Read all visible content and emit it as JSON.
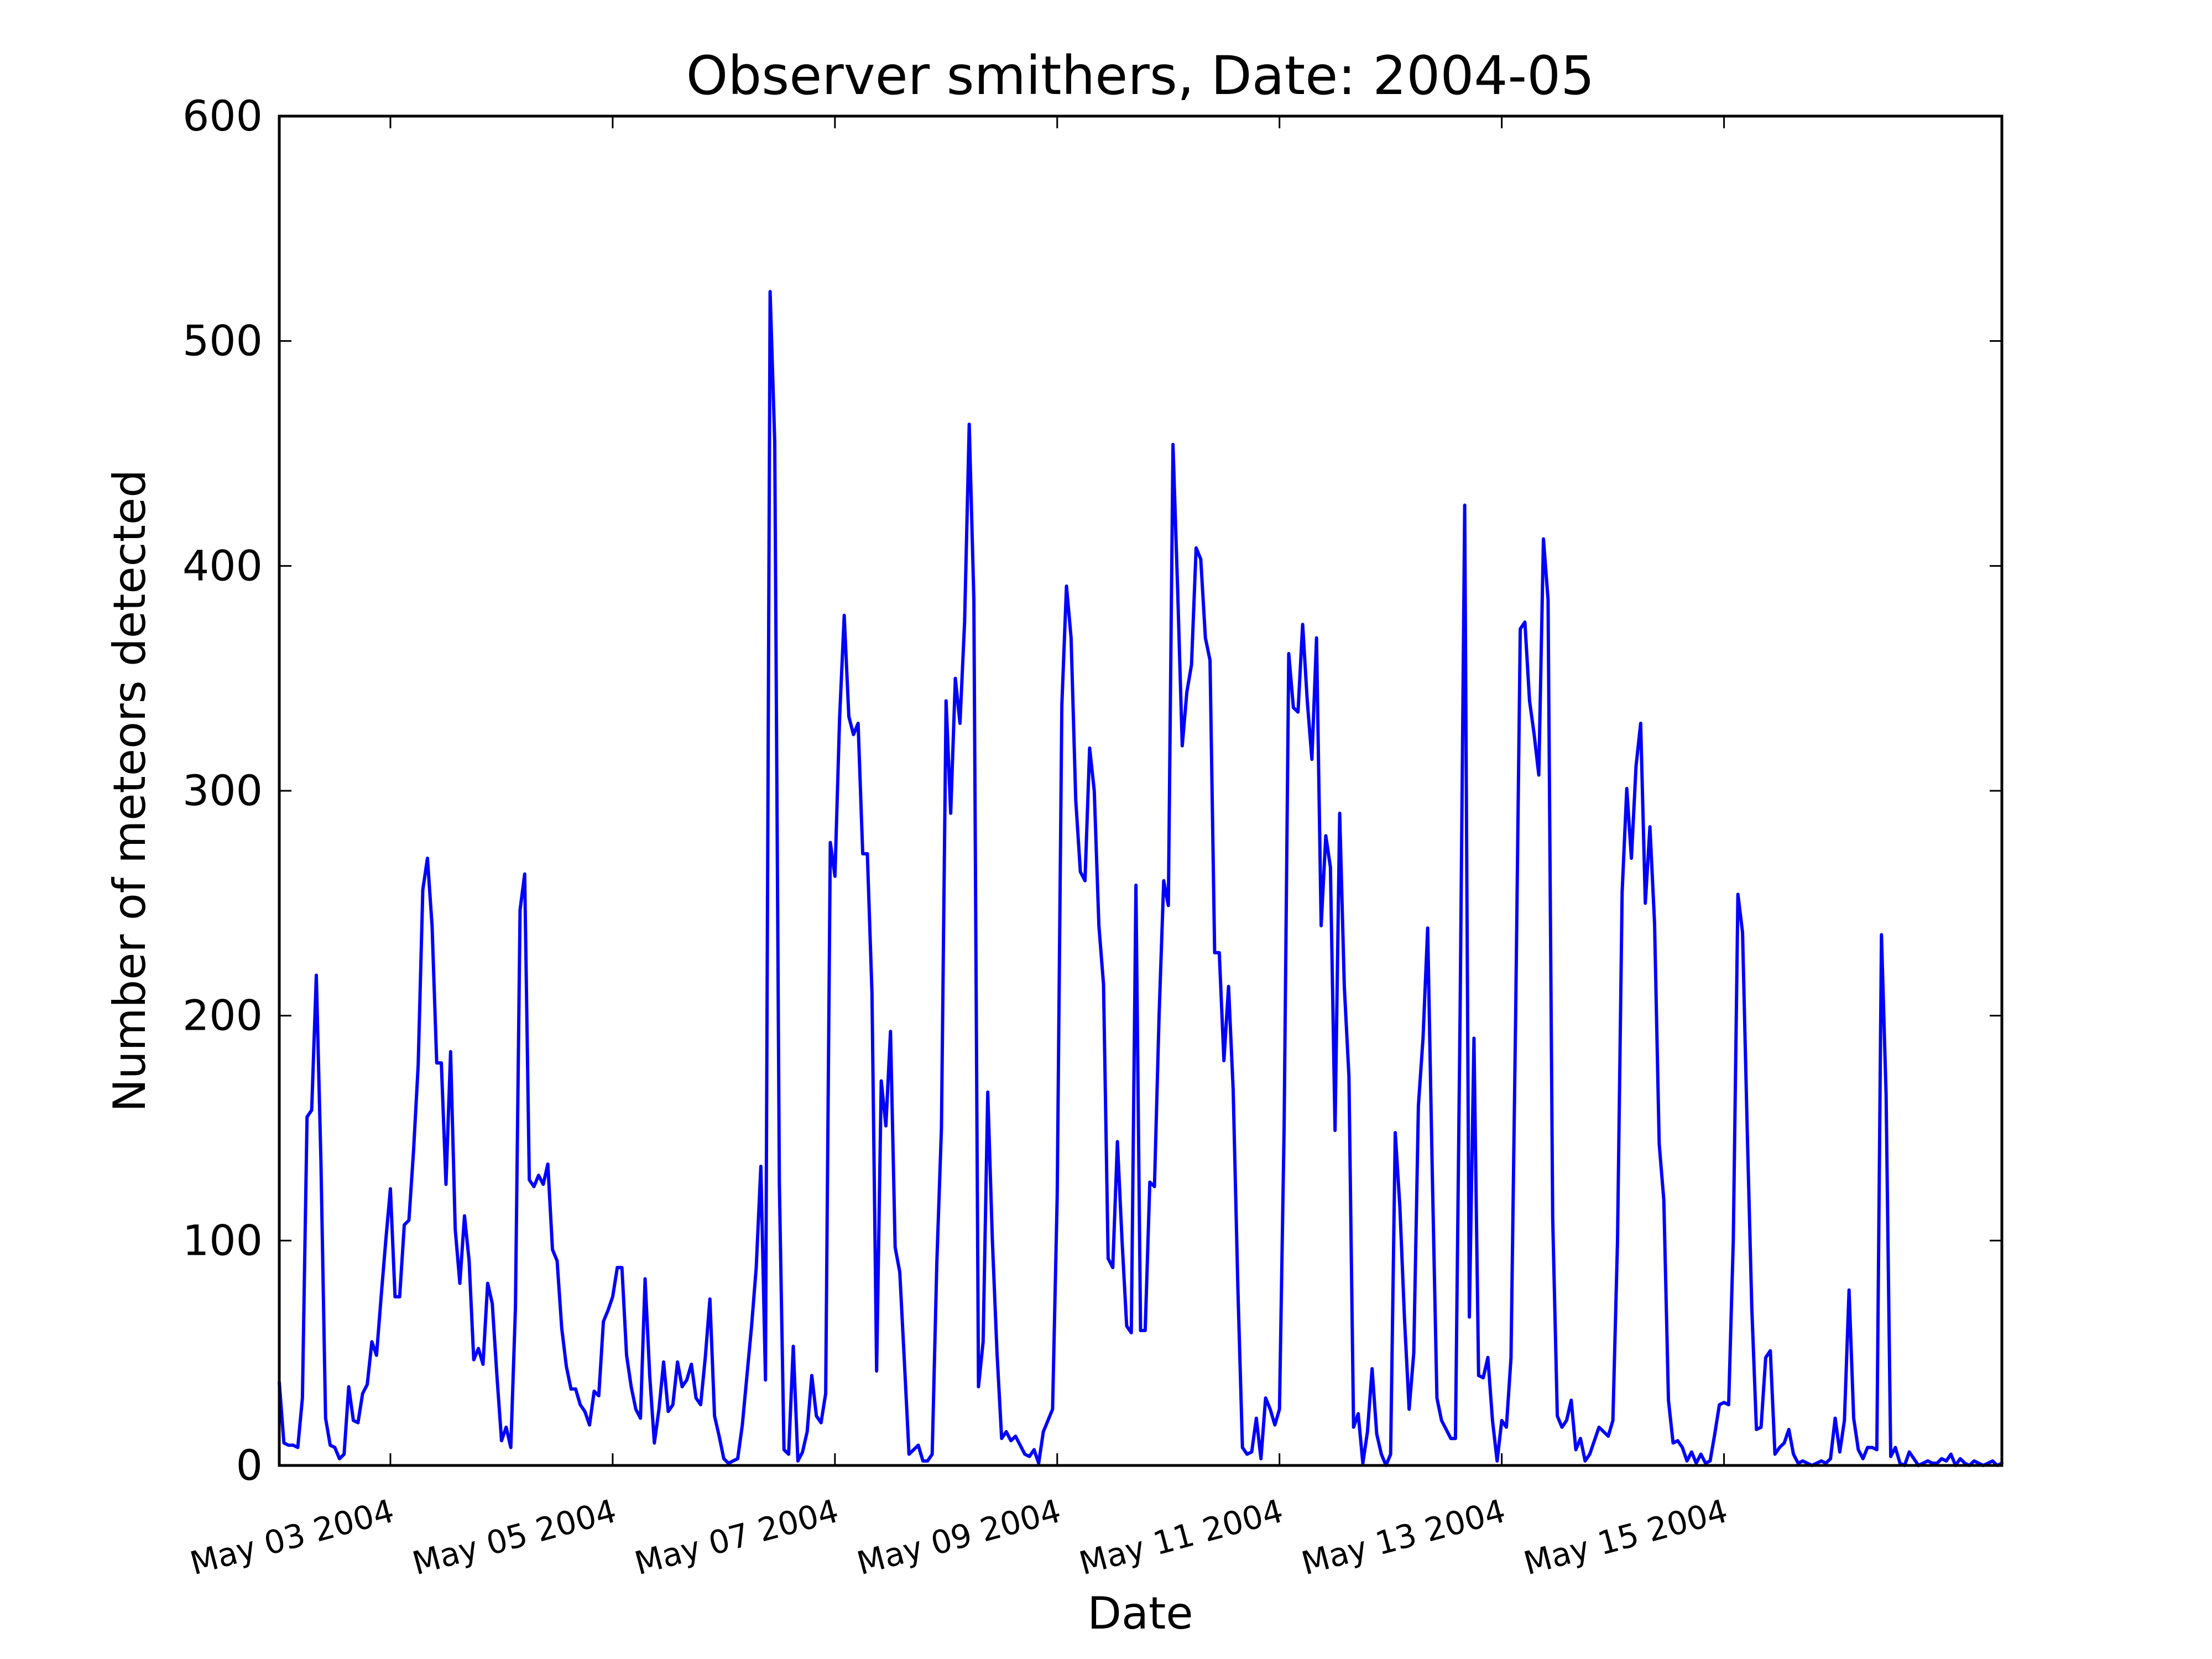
{
  "chart_data": {
    "type": "line",
    "title": "Observer smithers, Date: 2004-05",
    "xlabel": "Date",
    "ylabel": "Number of meteors detected",
    "xlim": [
      "2004-05-02T00:00",
      "2004-05-17T12:00"
    ],
    "ylim": [
      0,
      600
    ],
    "yticks": [
      0,
      100,
      200,
      300,
      400,
      500,
      600
    ],
    "xticks": [
      {
        "x": "2004-05-03T00:00",
        "label": "May 03 2004"
      },
      {
        "x": "2004-05-05T00:00",
        "label": "May 05 2004"
      },
      {
        "x": "2004-05-07T00:00",
        "label": "May 07 2004"
      },
      {
        "x": "2004-05-09T00:00",
        "label": "May 09 2004"
      },
      {
        "x": "2004-05-11T00:00",
        "label": "May 11 2004"
      },
      {
        "x": "2004-05-13T00:00",
        "label": "May 13 2004"
      },
      {
        "x": "2004-05-15T00:00",
        "label": "May 15 2004"
      }
    ],
    "grid": false,
    "line_color": "#0000ff",
    "series": [
      {
        "x": [
          "2004-05-02T00:00",
          "2004-05-02T01:00",
          "2004-05-02T02:00",
          "2004-05-02T03:00",
          "2004-05-02T04:00",
          "2004-05-02T05:00",
          "2004-05-02T06:00",
          "2004-05-02T07:00",
          "2004-05-02T08:00",
          "2004-05-02T09:00",
          "2004-05-02T10:00",
          "2004-05-02T11:00",
          "2004-05-02T12:00",
          "2004-05-02T13:00",
          "2004-05-02T14:00",
          "2004-05-02T15:00",
          "2004-05-02T16:00",
          "2004-05-02T17:00",
          "2004-05-02T18:00",
          "2004-05-02T19:00",
          "2004-05-02T20:00",
          "2004-05-02T21:00",
          "2004-05-02T22:00",
          "2004-05-02T23:00",
          "2004-05-03T00:00",
          "2004-05-03T01:00",
          "2004-05-03T02:00",
          "2004-05-03T03:00",
          "2004-05-03T04:00",
          "2004-05-03T05:00",
          "2004-05-03T06:00",
          "2004-05-03T07:00",
          "2004-05-03T08:00",
          "2004-05-03T09:00",
          "2004-05-03T10:00",
          "2004-05-03T11:00",
          "2004-05-03T12:00",
          "2004-05-03T13:00",
          "2004-05-03T14:00",
          "2004-05-03T15:00",
          "2004-05-03T16:00",
          "2004-05-03T17:00",
          "2004-05-03T18:00",
          "2004-05-03T19:00",
          "2004-05-03T20:00",
          "2004-05-03T21:00",
          "2004-05-03T22:00",
          "2004-05-03T23:00",
          "2004-05-04T00:00",
          "2004-05-04T01:00",
          "2004-05-04T02:00",
          "2004-05-04T03:00",
          "2004-05-04T04:00",
          "2004-05-04T05:00",
          "2004-05-04T06:00",
          "2004-05-04T07:00",
          "2004-05-04T08:00",
          "2004-05-04T09:00",
          "2004-05-04T10:00",
          "2004-05-04T11:00",
          "2004-05-04T12:00",
          "2004-05-04T13:00",
          "2004-05-04T14:00",
          "2004-05-04T15:00",
          "2004-05-04T16:00",
          "2004-05-04T17:00",
          "2004-05-04T18:00",
          "2004-05-04T19:00",
          "2004-05-04T20:00",
          "2004-05-04T21:00",
          "2004-05-04T22:00",
          "2004-05-04T23:00",
          "2004-05-05T00:00",
          "2004-05-05T01:00",
          "2004-05-05T02:00",
          "2004-05-05T03:00",
          "2004-05-05T04:00",
          "2004-05-05T05:00",
          "2004-05-05T06:00",
          "2004-05-05T07:00",
          "2004-05-05T08:00",
          "2004-05-05T09:00",
          "2004-05-05T10:00",
          "2004-05-05T11:00",
          "2004-05-05T12:00",
          "2004-05-05T13:00",
          "2004-05-05T14:00",
          "2004-05-05T15:00",
          "2004-05-05T16:00",
          "2004-05-05T17:00",
          "2004-05-05T18:00",
          "2004-05-05T19:00",
          "2004-05-05T20:00",
          "2004-05-05T21:00",
          "2004-05-05T22:00",
          "2004-05-05T23:00",
          "2004-05-06T00:00",
          "2004-05-06T01:00",
          "2004-05-06T02:00",
          "2004-05-06T03:00",
          "2004-05-06T04:00",
          "2004-05-06T05:00",
          "2004-05-06T06:00",
          "2004-05-06T07:00",
          "2004-05-06T08:00",
          "2004-05-06T09:00",
          "2004-05-06T10:00",
          "2004-05-06T11:00",
          "2004-05-06T12:00",
          "2004-05-06T13:00",
          "2004-05-06T14:00",
          "2004-05-06T15:00",
          "2004-05-06T16:00",
          "2004-05-06T17:00",
          "2004-05-06T18:00",
          "2004-05-06T19:00",
          "2004-05-06T20:00",
          "2004-05-06T21:00",
          "2004-05-06T22:00",
          "2004-05-06T23:00",
          "2004-05-07T00:00",
          "2004-05-07T01:00",
          "2004-05-07T02:00",
          "2004-05-07T03:00",
          "2004-05-07T04:00",
          "2004-05-07T05:00",
          "2004-05-07T06:00",
          "2004-05-07T07:00",
          "2004-05-07T08:00",
          "2004-05-07T09:00",
          "2004-05-07T10:00",
          "2004-05-07T11:00",
          "2004-05-07T12:00",
          "2004-05-07T13:00",
          "2004-05-07T14:00",
          "2004-05-07T15:00",
          "2004-05-07T16:00",
          "2004-05-07T17:00",
          "2004-05-07T18:00",
          "2004-05-07T19:00",
          "2004-05-07T20:00",
          "2004-05-07T21:00",
          "2004-05-07T22:00",
          "2004-05-07T23:00",
          "2004-05-08T00:00",
          "2004-05-08T01:00",
          "2004-05-08T02:00",
          "2004-05-08T03:00",
          "2004-05-08T04:00",
          "2004-05-08T05:00",
          "2004-05-08T06:00",
          "2004-05-08T07:00",
          "2004-05-08T08:00",
          "2004-05-08T09:00",
          "2004-05-08T10:00",
          "2004-05-08T11:00",
          "2004-05-08T12:00",
          "2004-05-08T13:00",
          "2004-05-08T14:00",
          "2004-05-08T15:00",
          "2004-05-08T16:00",
          "2004-05-08T17:00",
          "2004-05-08T18:00",
          "2004-05-08T19:00",
          "2004-05-08T20:00",
          "2004-05-08T21:00",
          "2004-05-08T22:00",
          "2004-05-08T23:00",
          "2004-05-09T00:00",
          "2004-05-09T01:00",
          "2004-05-09T02:00",
          "2004-05-09T03:00",
          "2004-05-09T04:00",
          "2004-05-09T05:00",
          "2004-05-09T06:00",
          "2004-05-09T07:00",
          "2004-05-09T08:00",
          "2004-05-09T09:00",
          "2004-05-09T10:00",
          "2004-05-09T11:00",
          "2004-05-09T12:00",
          "2004-05-09T13:00",
          "2004-05-09T14:00",
          "2004-05-09T15:00",
          "2004-05-09T16:00",
          "2004-05-09T17:00",
          "2004-05-09T18:00",
          "2004-05-09T19:00",
          "2004-05-09T20:00",
          "2004-05-09T21:00",
          "2004-05-09T22:00",
          "2004-05-09T23:00",
          "2004-05-10T00:00",
          "2004-05-10T01:00",
          "2004-05-10T02:00",
          "2004-05-10T03:00",
          "2004-05-10T04:00",
          "2004-05-10T05:00",
          "2004-05-10T06:00",
          "2004-05-10T07:00",
          "2004-05-10T08:00",
          "2004-05-10T09:00",
          "2004-05-10T10:00",
          "2004-05-10T11:00",
          "2004-05-10T12:00",
          "2004-05-10T13:00",
          "2004-05-10T14:00",
          "2004-05-10T15:00",
          "2004-05-10T16:00",
          "2004-05-10T17:00",
          "2004-05-10T18:00",
          "2004-05-10T19:00",
          "2004-05-10T20:00",
          "2004-05-10T21:00",
          "2004-05-10T22:00",
          "2004-05-10T23:00",
          "2004-05-11T00:00",
          "2004-05-11T01:00",
          "2004-05-11T02:00",
          "2004-05-11T03:00",
          "2004-05-11T04:00",
          "2004-05-11T05:00",
          "2004-05-11T06:00",
          "2004-05-11T07:00",
          "2004-05-11T08:00",
          "2004-05-11T09:00",
          "2004-05-11T10:00",
          "2004-05-11T11:00",
          "2004-05-11T12:00",
          "2004-05-11T13:00",
          "2004-05-11T14:00",
          "2004-05-11T15:00",
          "2004-05-11T16:00",
          "2004-05-11T17:00",
          "2004-05-11T18:00",
          "2004-05-11T19:00",
          "2004-05-11T20:00",
          "2004-05-11T21:00",
          "2004-05-11T22:00",
          "2004-05-11T23:00",
          "2004-05-12T00:00",
          "2004-05-12T01:00",
          "2004-05-12T02:00",
          "2004-05-12T03:00",
          "2004-05-12T04:00",
          "2004-05-12T05:00",
          "2004-05-12T06:00",
          "2004-05-12T07:00",
          "2004-05-12T08:00",
          "2004-05-12T09:00",
          "2004-05-12T10:00",
          "2004-05-12T11:00",
          "2004-05-12T12:00",
          "2004-05-12T13:00",
          "2004-05-12T14:00",
          "2004-05-12T15:00",
          "2004-05-12T16:00",
          "2004-05-12T17:00",
          "2004-05-12T18:00",
          "2004-05-12T19:00",
          "2004-05-12T20:00",
          "2004-05-12T21:00",
          "2004-05-12T22:00",
          "2004-05-12T23:00",
          "2004-05-13T00:00",
          "2004-05-13T01:00",
          "2004-05-13T02:00",
          "2004-05-13T03:00",
          "2004-05-13T04:00",
          "2004-05-13T05:00",
          "2004-05-13T06:00",
          "2004-05-13T07:00",
          "2004-05-13T08:00",
          "2004-05-13T09:00",
          "2004-05-13T10:00",
          "2004-05-13T11:00",
          "2004-05-13T12:00",
          "2004-05-13T13:00",
          "2004-05-13T14:00",
          "2004-05-13T15:00",
          "2004-05-13T16:00",
          "2004-05-13T17:00",
          "2004-05-13T18:00",
          "2004-05-13T19:00",
          "2004-05-13T20:00",
          "2004-05-13T21:00",
          "2004-05-13T22:00",
          "2004-05-13T23:00",
          "2004-05-14T00:00",
          "2004-05-14T01:00",
          "2004-05-14T02:00",
          "2004-05-14T03:00",
          "2004-05-14T04:00",
          "2004-05-14T05:00",
          "2004-05-14T06:00",
          "2004-05-14T07:00",
          "2004-05-14T08:00",
          "2004-05-14T09:00",
          "2004-05-14T10:00",
          "2004-05-14T11:00",
          "2004-05-14T12:00",
          "2004-05-14T13:00",
          "2004-05-14T14:00",
          "2004-05-14T15:00",
          "2004-05-14T16:00",
          "2004-05-14T17:00",
          "2004-05-14T18:00",
          "2004-05-14T19:00",
          "2004-05-14T20:00",
          "2004-05-14T21:00",
          "2004-05-14T22:00",
          "2004-05-14T23:00",
          "2004-05-15T00:00",
          "2004-05-15T01:00",
          "2004-05-15T02:00",
          "2004-05-15T03:00",
          "2004-05-15T04:00",
          "2004-05-15T05:00",
          "2004-05-15T06:00",
          "2004-05-15T07:00",
          "2004-05-15T08:00",
          "2004-05-15T09:00",
          "2004-05-15T10:00",
          "2004-05-15T11:00",
          "2004-05-15T12:00",
          "2004-05-15T13:00",
          "2004-05-15T14:00",
          "2004-05-15T15:00",
          "2004-05-15T16:00",
          "2004-05-15T17:00",
          "2004-05-15T18:00",
          "2004-05-15T19:00",
          "2004-05-15T20:00",
          "2004-05-15T21:00",
          "2004-05-15T22:00",
          "2004-05-15T23:00",
          "2004-05-16T00:00",
          "2004-05-16T01:00",
          "2004-05-16T02:00",
          "2004-05-16T03:00",
          "2004-05-16T04:00",
          "2004-05-16T05:00",
          "2004-05-16T06:00",
          "2004-05-16T07:00",
          "2004-05-16T08:00",
          "2004-05-16T09:00",
          "2004-05-16T10:00",
          "2004-05-16T11:00",
          "2004-05-16T12:00",
          "2004-05-16T13:00",
          "2004-05-16T14:00",
          "2004-05-16T15:00",
          "2004-05-16T16:00",
          "2004-05-16T17:00",
          "2004-05-16T18:00",
          "2004-05-16T19:00",
          "2004-05-16T20:00",
          "2004-05-16T21:00",
          "2004-05-16T22:00",
          "2004-05-16T23:00",
          "2004-05-17T00:00",
          "2004-05-17T01:00",
          "2004-05-17T02:00",
          "2004-05-17T03:00",
          "2004-05-17T04:00",
          "2004-05-17T05:00",
          "2004-05-17T06:00",
          "2004-05-17T07:00",
          "2004-05-17T08:00",
          "2004-05-17T09:00",
          "2004-05-17T10:00",
          "2004-05-17T11:00",
          "2004-05-17T12:00"
        ],
        "values": [
          37,
          10,
          9,
          9,
          8,
          30,
          155,
          158,
          218,
          135,
          21,
          9,
          8,
          3,
          5,
          35,
          20,
          19,
          32,
          36,
          55,
          49,
          75,
          100,
          123,
          75,
          75,
          107,
          109,
          140,
          178,
          256,
          270,
          240,
          179,
          179,
          125,
          184,
          105,
          81,
          111,
          91,
          47,
          52,
          45,
          81,
          72,
          40,
          11,
          17,
          8,
          70,
          247,
          263,
          127,
          124,
          129,
          125,
          134,
          96,
          91,
          61,
          44,
          34,
          34,
          27,
          24,
          18,
          33,
          31,
          64,
          69,
          75,
          88,
          88,
          49,
          35,
          25,
          21,
          83,
          40,
          10,
          25,
          46,
          24,
          27,
          46,
          35,
          38,
          45,
          30,
          27,
          48,
          74,
          22,
          13,
          3,
          1,
          2,
          3,
          18,
          40,
          62,
          88,
          133,
          38,
          522,
          455,
          125,
          7,
          5,
          53,
          2,
          6,
          15,
          40,
          22,
          19,
          32,
          277,
          262,
          332,
          378,
          333,
          325,
          330,
          272,
          272,
          210,
          42,
          171,
          151,
          193,
          97,
          86,
          46,
          5,
          7,
          9,
          2,
          2,
          5,
          90,
          150,
          340,
          290,
          350,
          330,
          375,
          463,
          385,
          35,
          55,
          166,
          100,
          50,
          12,
          15,
          11,
          13,
          9,
          5,
          4,
          7,
          1,
          15,
          20,
          25,
          120,
          338,
          391,
          368,
          296,
          264,
          260,
          319,
          300,
          240,
          214,
          92,
          88,
          144,
          100,
          62,
          59,
          258,
          60,
          60,
          126,
          124,
          200,
          260,
          249,
          454,
          390,
          320,
          344,
          356,
          408,
          403,
          368,
          358,
          228,
          228,
          180,
          213,
          167,
          80,
          8,
          5,
          6,
          21,
          3,
          30,
          25,
          18,
          25,
          150,
          361,
          337,
          335,
          374,
          340,
          314,
          368,
          240,
          280,
          266,
          149,
          290,
          213,
          173,
          17,
          23,
          1,
          15,
          43,
          14,
          5,
          0,
          5,
          148,
          115,
          65,
          25,
          50,
          160,
          190,
          239,
          130,
          30,
          20,
          16,
          12,
          12,
          200,
          427,
          66,
          190,
          40,
          39,
          48,
          20,
          2,
          20,
          17,
          48,
          200,
          372,
          375,
          340,
          325,
          307,
          412,
          385,
          110,
          22,
          17,
          20,
          29,
          7,
          12,
          2,
          5,
          11,
          17,
          15,
          13,
          20,
          100,
          255,
          301,
          270,
          311,
          330,
          250,
          284,
          241,
          143,
          118,
          29,
          10,
          11,
          8,
          2,
          6,
          1,
          5,
          1,
          2,
          14,
          27,
          28,
          27,
          100,
          254,
          237,
          150,
          70,
          16,
          17,
          48,
          51,
          5,
          8,
          10,
          16,
          5,
          1,
          2,
          1,
          0,
          1,
          2,
          1,
          3,
          21,
          6,
          20,
          78,
          21,
          7,
          3,
          8,
          8,
          7,
          236,
          165,
          4,
          8,
          1,
          0,
          6,
          3,
          0,
          1,
          2,
          1,
          1,
          3,
          2,
          5,
          0,
          3,
          1,
          0,
          2,
          1,
          0,
          1,
          2,
          0,
          1
        ]
      }
    ]
  }
}
